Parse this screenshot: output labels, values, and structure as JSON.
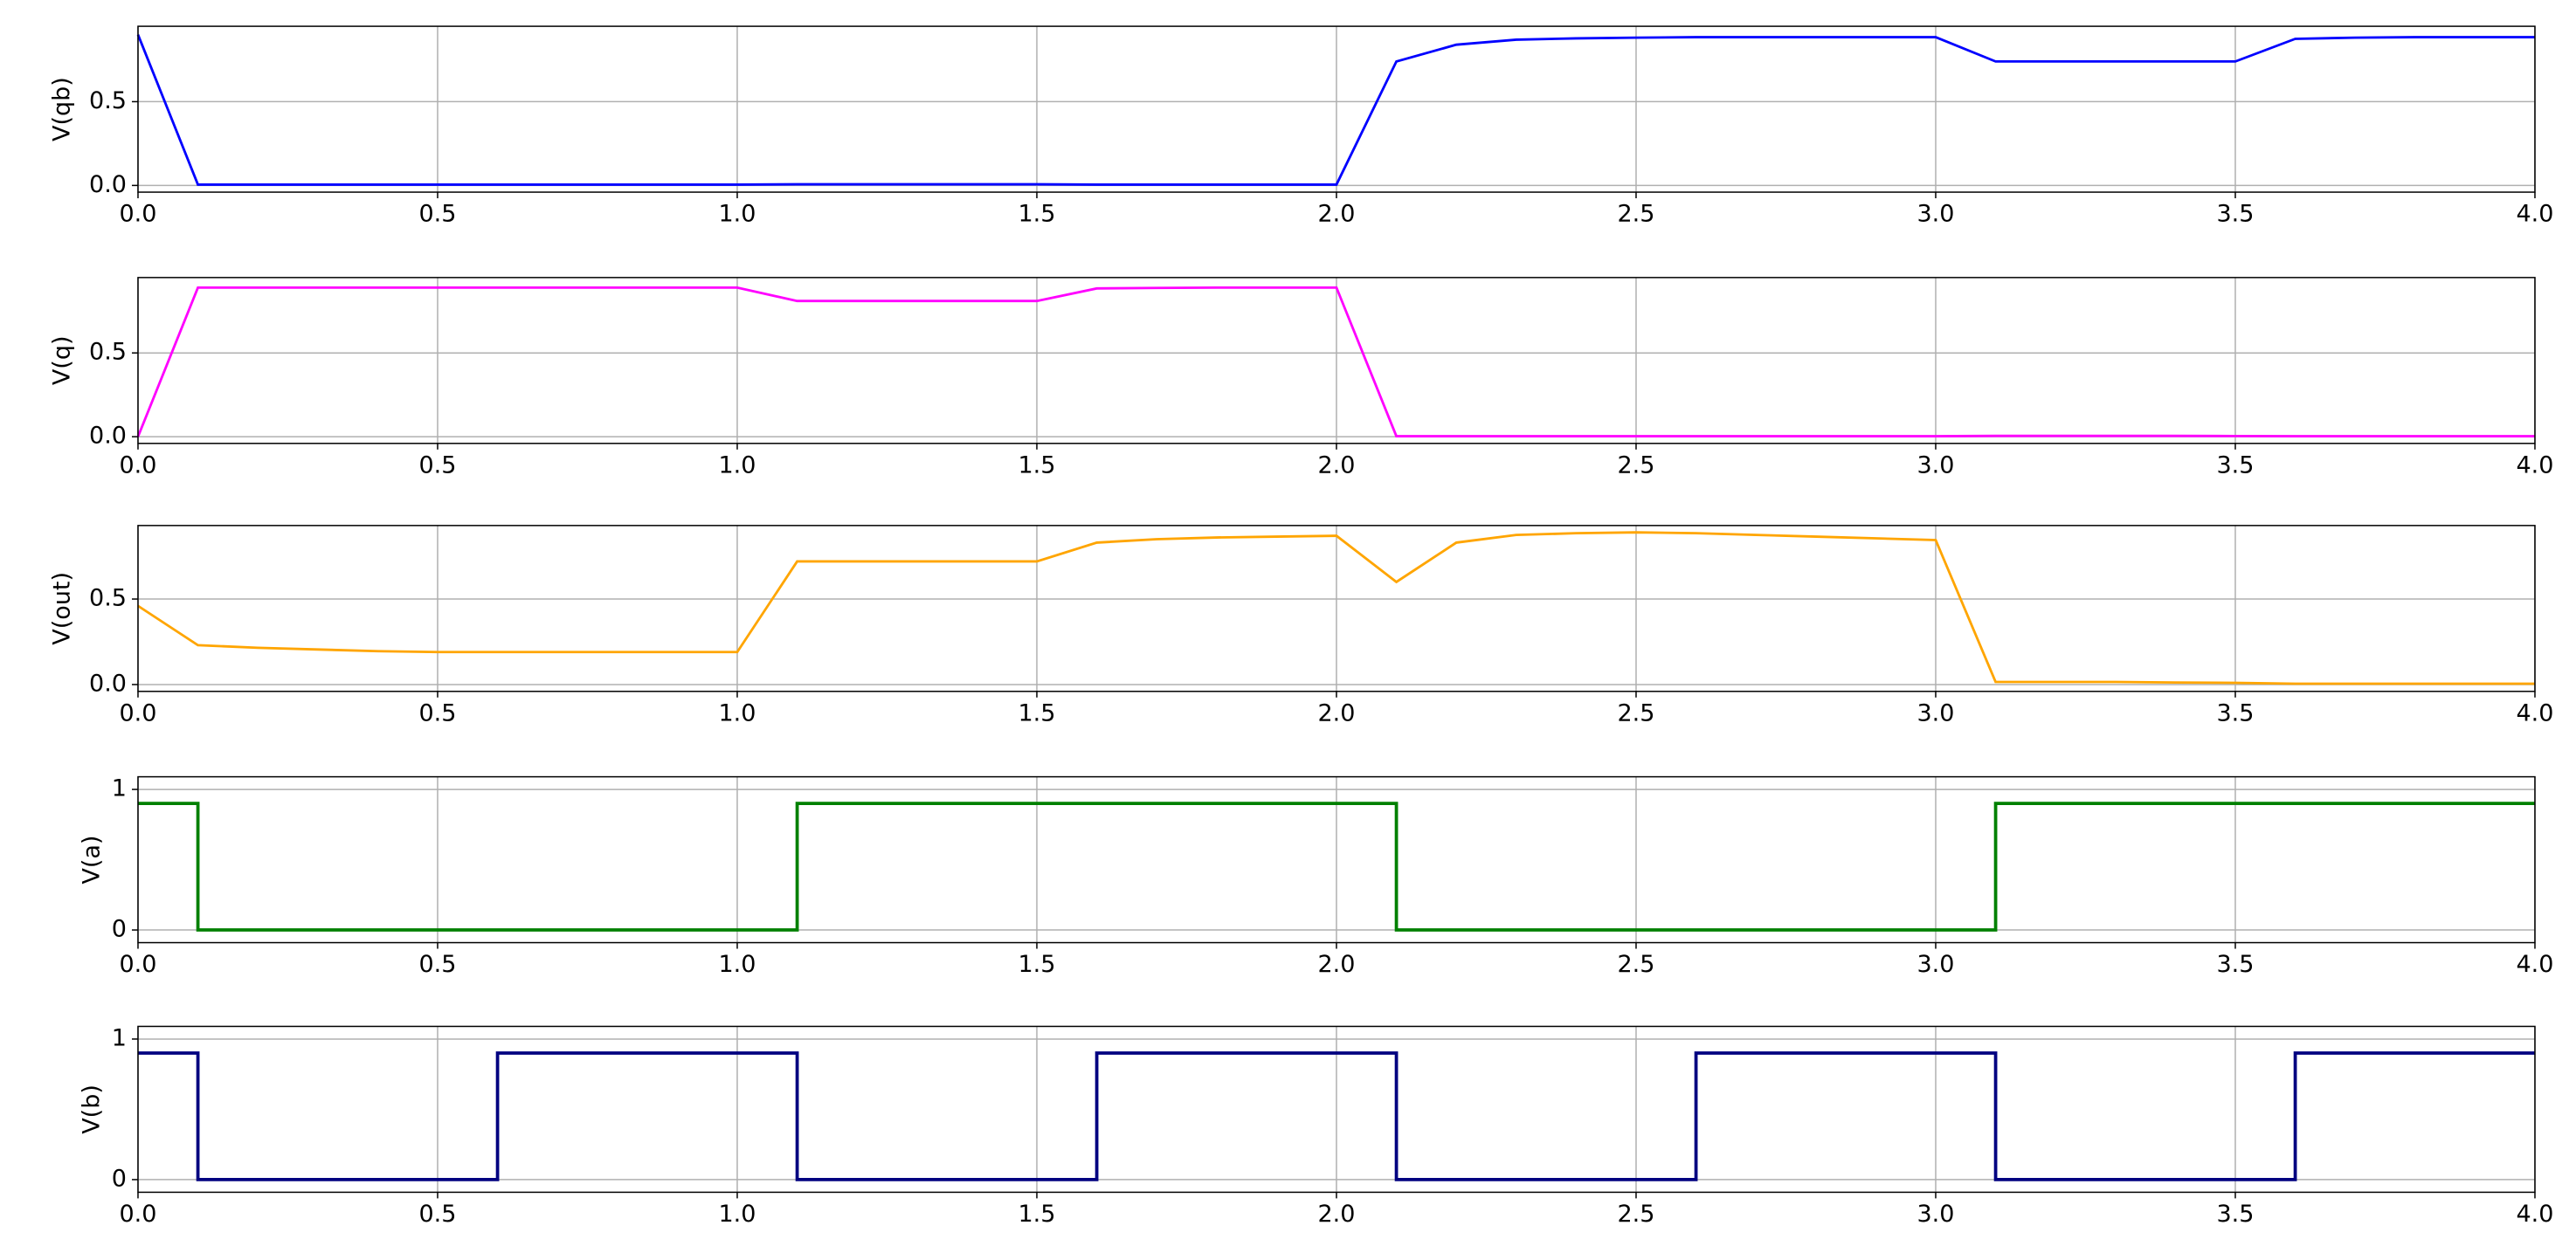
{
  "chart_data": [
    {
      "type": "line",
      "ylabel": "V(qb)",
      "color": "#0000ff",
      "linewidth": 1.5,
      "grid": true,
      "x": [
        0,
        0.1,
        0.2,
        0.3,
        0.4,
        0.5,
        0.6,
        0.7,
        0.8,
        0.9,
        1.0,
        1.1,
        1.2,
        1.3,
        1.4,
        1.5,
        1.6,
        1.7,
        1.8,
        1.9,
        2.0,
        2.1,
        2.2,
        2.3,
        2.4,
        2.5,
        2.6,
        2.7,
        2.8,
        2.9,
        3.0,
        3.1,
        3.2,
        3.3,
        3.4,
        3.5,
        3.6,
        3.7,
        3.8,
        3.9,
        4.0
      ],
      "values": [
        0.9,
        0.005,
        0.005,
        0.005,
        0.005,
        0.005,
        0.005,
        0.005,
        0.005,
        0.005,
        0.005,
        0.007,
        0.007,
        0.007,
        0.007,
        0.007,
        0.005,
        0.005,
        0.005,
        0.005,
        0.005,
        0.74,
        0.84,
        0.87,
        0.878,
        0.882,
        0.885,
        0.885,
        0.885,
        0.885,
        0.885,
        0.74,
        0.74,
        0.74,
        0.74,
        0.74,
        0.875,
        0.882,
        0.885,
        0.885,
        0.885
      ],
      "xlim": [
        0,
        4
      ],
      "xticks": [
        {
          "value": 0,
          "label": "0.0"
        },
        {
          "value": 0.5,
          "label": "0.5"
        },
        {
          "value": 1,
          "label": "1.0"
        },
        {
          "value": 1.5,
          "label": "1.5"
        },
        {
          "value": 2,
          "label": "2.0"
        },
        {
          "value": 2.5,
          "label": "2.5"
        },
        {
          "value": 3,
          "label": "3.0"
        },
        {
          "value": 3.5,
          "label": "3.5"
        },
        {
          "value": 4,
          "label": "4.0"
        }
      ],
      "ylim": [
        -0.04,
        0.95
      ],
      "yticks": [
        {
          "value": 0,
          "label": "0.0"
        },
        {
          "value": 0.5,
          "label": "0.5"
        }
      ]
    },
    {
      "type": "line",
      "ylabel": "V(q)",
      "color": "#ff00ff",
      "linewidth": 1.5,
      "grid": true,
      "x": [
        0,
        0.1,
        0.2,
        0.3,
        0.4,
        0.5,
        0.6,
        0.7,
        0.8,
        0.9,
        1.0,
        1.1,
        1.2,
        1.3,
        1.4,
        1.5,
        1.6,
        1.7,
        1.8,
        1.9,
        2.0,
        2.1,
        2.2,
        2.3,
        2.4,
        2.5,
        2.6,
        2.7,
        2.8,
        2.9,
        3.0,
        3.1,
        3.2,
        3.3,
        3.4,
        3.5,
        3.6,
        3.7,
        3.8,
        3.9,
        4.0
      ],
      "values": [
        0,
        0.89,
        0.89,
        0.89,
        0.89,
        0.89,
        0.89,
        0.89,
        0.89,
        0.89,
        0.89,
        0.81,
        0.81,
        0.81,
        0.81,
        0.81,
        0.885,
        0.888,
        0.89,
        0.89,
        0.89,
        0.003,
        0.003,
        0.003,
        0.003,
        0.003,
        0.003,
        0.003,
        0.003,
        0.003,
        0.003,
        0.005,
        0.005,
        0.005,
        0.005,
        0.004,
        0.003,
        0.003,
        0.003,
        0.003,
        0.003
      ],
      "xlim": [
        0,
        4
      ],
      "xticks": [
        {
          "value": 0,
          "label": "0.0"
        },
        {
          "value": 0.5,
          "label": "0.5"
        },
        {
          "value": 1,
          "label": "1.0"
        },
        {
          "value": 1.5,
          "label": "1.5"
        },
        {
          "value": 2,
          "label": "2.0"
        },
        {
          "value": 2.5,
          "label": "2.5"
        },
        {
          "value": 3,
          "label": "3.0"
        },
        {
          "value": 3.5,
          "label": "3.5"
        },
        {
          "value": 4,
          "label": "4.0"
        }
      ],
      "ylim": [
        -0.04,
        0.95
      ],
      "yticks": [
        {
          "value": 0,
          "label": "0.0"
        },
        {
          "value": 0.5,
          "label": "0.5"
        }
      ]
    },
    {
      "type": "line",
      "ylabel": "V(out)",
      "color": "#ffa500",
      "linewidth": 1.5,
      "grid": true,
      "x": [
        0,
        0.1,
        0.2,
        0.3,
        0.4,
        0.5,
        0.6,
        0.7,
        0.8,
        0.9,
        1.0,
        1.1,
        1.2,
        1.3,
        1.4,
        1.5,
        1.6,
        1.7,
        1.8,
        1.9,
        2.0,
        2.1,
        2.2,
        2.3,
        2.4,
        2.5,
        2.6,
        2.7,
        2.8,
        2.9,
        3.0,
        3.1,
        3.2,
        3.3,
        3.4,
        3.5,
        3.6,
        3.7,
        3.8,
        3.9,
        4.0
      ],
      "values": [
        0.46,
        0.23,
        0.215,
        0.205,
        0.195,
        0.19,
        0.19,
        0.19,
        0.19,
        0.19,
        0.19,
        0.72,
        0.72,
        0.72,
        0.72,
        0.72,
        0.83,
        0.85,
        0.86,
        0.865,
        0.87,
        0.6,
        0.83,
        0.875,
        0.885,
        0.89,
        0.885,
        0.875,
        0.865,
        0.855,
        0.845,
        0.015,
        0.015,
        0.015,
        0.012,
        0.01,
        0.005,
        0.005,
        0.005,
        0.005,
        0.005
      ],
      "xlim": [
        0,
        4
      ],
      "xticks": [
        {
          "value": 0,
          "label": "0.0"
        },
        {
          "value": 0.5,
          "label": "0.5"
        },
        {
          "value": 1,
          "label": "1.0"
        },
        {
          "value": 1.5,
          "label": "1.5"
        },
        {
          "value": 2,
          "label": "2.0"
        },
        {
          "value": 2.5,
          "label": "2.5"
        },
        {
          "value": 3,
          "label": "3.0"
        },
        {
          "value": 3.5,
          "label": "3.5"
        },
        {
          "value": 4,
          "label": "4.0"
        }
      ],
      "ylim": [
        -0.04,
        0.93
      ],
      "yticks": [
        {
          "value": 0,
          "label": "0.0"
        },
        {
          "value": 0.5,
          "label": "0.5"
        }
      ]
    },
    {
      "type": "line",
      "ylabel": "V(a)",
      "color": "#008000",
      "linewidth": 2,
      "grid": true,
      "x": [
        0,
        0.1,
        0.1,
        1.1,
        1.1,
        2.1,
        2.1,
        3.1,
        3.1,
        4
      ],
      "values": [
        0.9,
        0.9,
        0,
        0,
        0.9,
        0.9,
        0,
        0,
        0.9,
        0.9
      ],
      "xlim": [
        0,
        4
      ],
      "xticks": [
        {
          "value": 0,
          "label": "0.0"
        },
        {
          "value": 0.5,
          "label": "0.5"
        },
        {
          "value": 1,
          "label": "1.0"
        },
        {
          "value": 1.5,
          "label": "1.5"
        },
        {
          "value": 2,
          "label": "2.0"
        },
        {
          "value": 2.5,
          "label": "2.5"
        },
        {
          "value": 3,
          "label": "3.0"
        },
        {
          "value": 3.5,
          "label": "3.5"
        },
        {
          "value": 4,
          "label": "4.0"
        }
      ],
      "ylim": [
        -0.09,
        1.09
      ],
      "yticks": [
        0,
        1
      ]
    },
    {
      "type": "line",
      "ylabel": "V(b)",
      "color": "#000080",
      "linewidth": 2,
      "grid": true,
      "x": [
        0,
        0.1,
        0.1,
        0.6,
        0.6,
        1.1,
        1.1,
        1.6,
        1.6,
        2.1,
        2.1,
        2.6,
        2.6,
        3.1,
        3.1,
        3.6,
        3.6,
        4
      ],
      "values": [
        0.9,
        0.9,
        0,
        0,
        0.9,
        0.9,
        0,
        0,
        0.9,
        0.9,
        0,
        0,
        0.9,
        0.9,
        0,
        0,
        0.9,
        0.9
      ],
      "xlim": [
        0,
        4
      ],
      "xticks": [
        {
          "value": 0,
          "label": "0.0"
        },
        {
          "value": 0.5,
          "label": "0.5"
        },
        {
          "value": 1,
          "label": "1.0"
        },
        {
          "value": 1.5,
          "label": "1.5"
        },
        {
          "value": 2,
          "label": "2.0"
        },
        {
          "value": 2.5,
          "label": "2.5"
        },
        {
          "value": 3,
          "label": "3.0"
        },
        {
          "value": 3.5,
          "label": "3.5"
        },
        {
          "value": 4,
          "label": "4.0"
        }
      ],
      "ylim": [
        -0.09,
        1.09
      ],
      "yticks": [
        0,
        1
      ]
    }
  ]
}
